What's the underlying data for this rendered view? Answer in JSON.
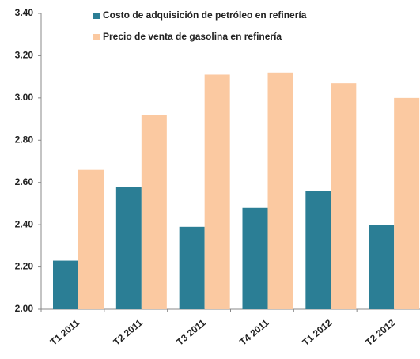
{
  "chart_data": {
    "type": "bar",
    "categories": [
      "T1 2011",
      "T2 2011",
      "T3 2011",
      "T4 2011",
      "T1 2012",
      "T2 2012"
    ],
    "series": [
      {
        "name": "Costo de adquisición de petróleo en refinería",
        "color": "#2b7e95",
        "values": [
          2.23,
          2.58,
          2.39,
          2.48,
          2.56,
          2.4
        ]
      },
      {
        "name": "Precio de venta de gasolina en refinería",
        "color": "#fbc9a1",
        "values": [
          2.66,
          2.92,
          3.11,
          3.12,
          3.07,
          3.0
        ]
      }
    ],
    "ylim": [
      2.0,
      3.4
    ],
    "yticks": [
      {
        "value": 2.0,
        "label": "2.00"
      },
      {
        "value": 2.2,
        "label": "2.20"
      },
      {
        "value": 2.4,
        "label": "2.40"
      },
      {
        "value": 2.6,
        "label": "2.60"
      },
      {
        "value": 2.8,
        "label": "2.80"
      },
      {
        "value": 3.0,
        "label": "3.00"
      },
      {
        "value": 3.2,
        "label": "3.20"
      },
      {
        "value": 3.4,
        "label": "3.40"
      }
    ],
    "grid": false
  }
}
